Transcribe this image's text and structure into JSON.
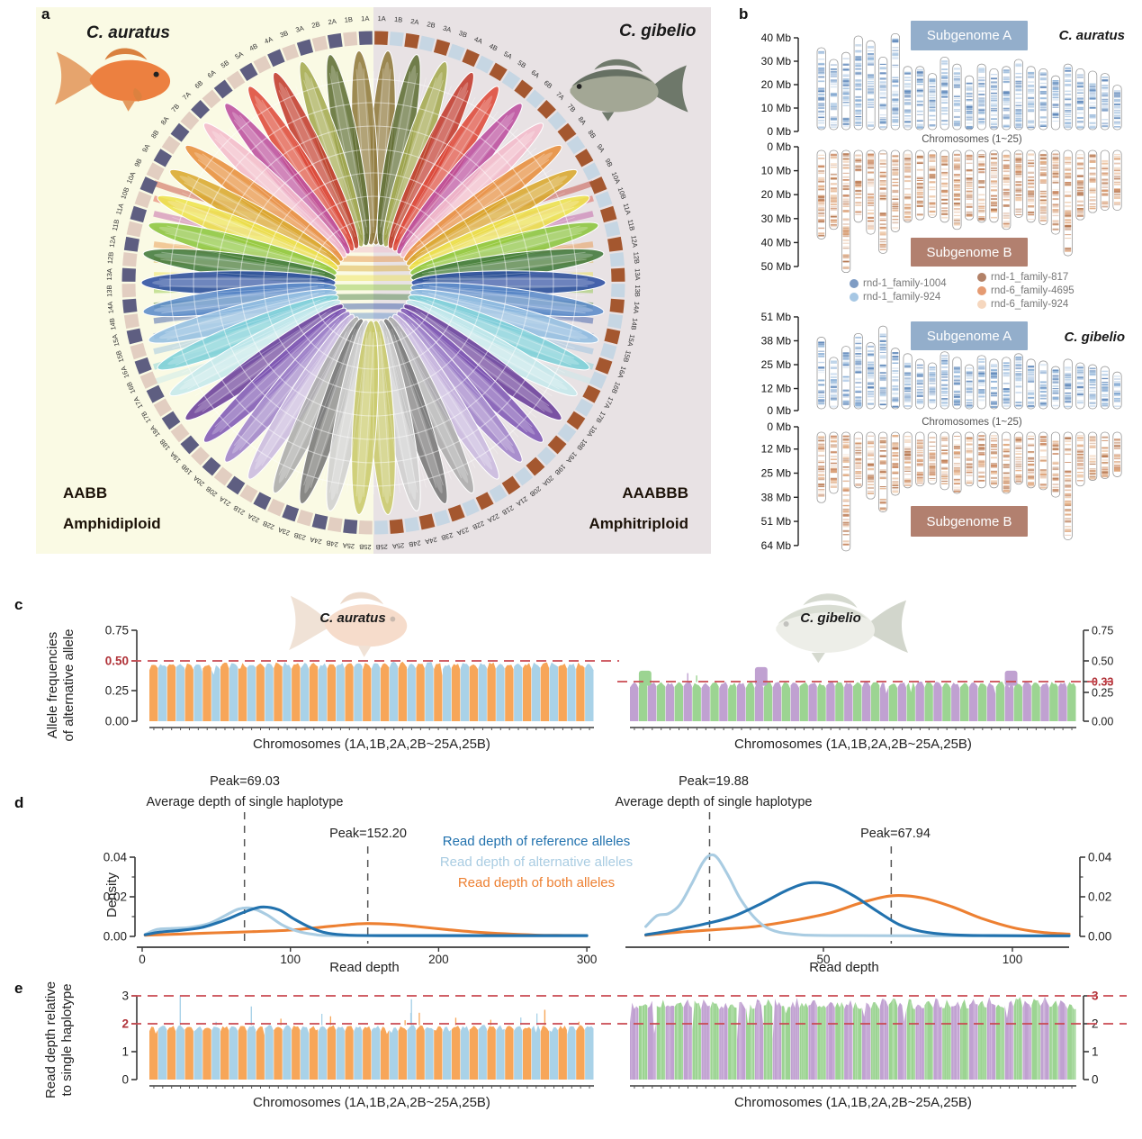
{
  "panels": {
    "a": {
      "letter": "a",
      "species_left": "C. auratus",
      "species_right": "C. gibelio",
      "ploidy_left_line1": "AABB",
      "ploidy_left_line2": "Amphidiploid",
      "ploidy_right_line1": "AAABBB",
      "ploidy_right_line2": "Amphitriploid",
      "chrom_labels": [
        "1A",
        "1B",
        "2A",
        "2B",
        "3A",
        "3B",
        "4A",
        "4B",
        "5A",
        "5B",
        "6A",
        "6B",
        "7A",
        "7B",
        "8A",
        "8B",
        "9A",
        "9B",
        "10A",
        "10B",
        "11A",
        "11B",
        "12A",
        "12B",
        "13A",
        "13B",
        "14A",
        "14B",
        "15A",
        "15B",
        "16A",
        "16B",
        "17A",
        "17B",
        "18A",
        "18B",
        "19A",
        "19B",
        "20A",
        "20B",
        "21A",
        "21B",
        "22A",
        "22B",
        "23A",
        "23B",
        "24A",
        "24B",
        "25A",
        "25B"
      ],
      "ring_left": {
        "a_color": "#5E5E81",
        "b_color": "#E2CEC1"
      },
      "ring_right": {
        "a_color": "#A4572F",
        "b_color": "#C6D6E3"
      },
      "petal_colors": [
        "#8F7A3C",
        "#5E6E34",
        "#A4AA50",
        "#C13A2C",
        "#DE4A3A",
        "#BC4F9E",
        "#F2BBCB",
        "#E78E3C",
        "#D9A92E",
        "#EDE24D",
        "#8CC63F",
        "#41793B",
        "#2C4FA3",
        "#5B8BC9",
        "#93BEE1",
        "#7ED0D8",
        "#C5E8EC",
        "#6A3D9A",
        "#8059B5",
        "#9F83C9",
        "#C9BADF",
        "#ABABAB",
        "#787878",
        "#CFCFCF",
        "#C9C96B"
      ]
    },
    "b": {
      "letter": "b",
      "subgenome_a": "Subgenome A",
      "subgenome_b": "Subgenome B",
      "subgenome_a_color": "#93AECB",
      "subgenome_b_color": "#B2806F",
      "legend": [
        {
          "label": "rnd-1_family-1004",
          "color": "#7E9CC4"
        },
        {
          "label": "rnd-1_family-924",
          "color": "#A6C7E4"
        },
        {
          "label": "rnd-1_family-817",
          "color": "#B28167"
        },
        {
          "label": "rnd-6_family-4695",
          "color": "#E59B72"
        },
        {
          "label": "rnd-6_family-924",
          "color": "#F6D7BE"
        }
      ],
      "band_colors_a": [
        "#5C85B8",
        "#8FB3D8",
        "#B9D0E8"
      ],
      "band_colors_b": [
        "#C98861",
        "#E0A87E",
        "#EFCBAD",
        "#B5764F"
      ],
      "species": [
        {
          "name": "C. auratus",
          "x_label": "Chromosomes (1~25)",
          "sub_a_ticks": [
            "40 Mb",
            "30 Mb",
            "20 Mb",
            "10 Mb",
            "0 Mb"
          ],
          "sub_a_tick_vals": [
            40,
            30,
            20,
            10,
            0
          ],
          "sub_b_ticks": [
            "0 Mb",
            "10 Mb",
            "20 Mb",
            "30 Mb",
            "40 Mb",
            "50 Mb"
          ],
          "sub_b_tick_vals": [
            0,
            10,
            20,
            30,
            40,
            50
          ],
          "sub_a_lengths_mb": [
            35,
            30,
            33,
            40,
            38,
            31,
            41,
            27,
            27,
            24,
            31,
            28,
            23,
            28,
            26,
            27,
            30,
            27,
            26,
            23,
            28,
            26,
            25,
            24,
            19
          ],
          "sub_b_lengths_mb": [
            37,
            33,
            51,
            30,
            35,
            43,
            34,
            30,
            29,
            28,
            30,
            33,
            29,
            30,
            30,
            33,
            28,
            30,
            31,
            35,
            44,
            29,
            26,
            25,
            25
          ]
        },
        {
          "name": "C. gibelio",
          "x_label": "Chromosomes (1~25)",
          "sub_a_ticks": [
            "51 Mb",
            "38 Mb",
            "25 Mb",
            "12 Mb",
            "0 Mb"
          ],
          "sub_a_tick_vals": [
            51,
            38,
            25,
            12,
            0
          ],
          "sub_b_ticks": [
            "0 Mb",
            "12 Mb",
            "25 Mb",
            "38 Mb",
            "51 Mb",
            "64 Mb"
          ],
          "sub_b_tick_vals": [
            0,
            12,
            25,
            38,
            51,
            64
          ],
          "sub_a_lengths_mb": [
            39,
            28,
            34,
            41,
            36,
            45,
            33,
            30,
            27,
            25,
            31,
            28,
            24,
            29,
            27,
            28,
            30,
            27,
            26,
            23,
            27,
            25,
            24,
            23,
            20
          ],
          "sub_b_lengths_mb": [
            38,
            33,
            64,
            30,
            36,
            43,
            34,
            30,
            29,
            28,
            31,
            33,
            29,
            30,
            30,
            33,
            28,
            30,
            31,
            35,
            58,
            29,
            26,
            25,
            24
          ]
        }
      ]
    },
    "c": {
      "letter": "c",
      "y_axis_label_line1": "Allele frequencies",
      "y_axis_label_line2": "of alternative allele",
      "left_species": "C. auratus",
      "right_species": "C. gibelio",
      "left_x_label": "Chromosomes (1A,1B,2A,2B~25A,25B)",
      "right_x_label": "Chromosomes (1A,1B,2A,2B~25A,25B)"
    },
    "d": {
      "letter": "d",
      "y_axis_label": "Density",
      "left_x_label": "Read depth",
      "right_x_label": "Read depth",
      "left_peak1": "Peak=69.03",
      "left_note": "Average depth of single haplotype",
      "left_peak2": "Peak=152.20",
      "right_peak1": "Peak=19.88",
      "right_note": "Average depth of single haplotype",
      "right_peak2": "Peak=67.94",
      "legend": [
        {
          "label": "Read depth of reference alleles",
          "color": "#2272AE"
        },
        {
          "label": "Read depth of alternative alleles",
          "color": "#A9CCE2"
        },
        {
          "label": "Read depth of both alleles",
          "color": "#ED8032"
        }
      ]
    },
    "e": {
      "letter": "e",
      "y_axis_label_line1": "Read depth relative",
      "y_axis_label_line2": "to single haplotype",
      "left_x_label": "Chromosomes (1A,1B,2A,2B~25A,25B)",
      "right_x_label": "Chromosomes (1A,1B,2A,2B~25A,25B)"
    }
  },
  "chart_data": [
    {
      "id": "c_left",
      "type": "bar",
      "species": "C. auratus",
      "ylabel": "Allele frequencies of alternative allele",
      "xlabel": "Chromosomes (1A,1B,2A,2B~25A,25B)",
      "yticks": [
        "0.75",
        "0.50",
        "0.25",
        "0.00"
      ],
      "ytick_values": [
        0.75,
        0.5,
        0.25,
        0.0
      ],
      "highlight_tick": "0.50",
      "reference_line": 0.5,
      "groups": 50,
      "typical_level": 0.49,
      "bar_colors": [
        "#F7A659",
        "#A9D2E8"
      ],
      "description": "50 alternating A/B chromosome groups, allele frequency of alternative allele ~0.50 each"
    },
    {
      "id": "c_right",
      "type": "bar",
      "species": "C. gibelio",
      "ylabel": "Allele frequencies of alternative allele",
      "xlabel": "Chromosomes (1A,1B,2A,2B~25A,25B)",
      "yticks": [
        "0.75",
        "0.50",
        "0.33",
        "0.25",
        "0.00"
      ],
      "ytick_values": [
        0.75,
        0.5,
        0.33,
        0.25,
        0.0
      ],
      "highlight_tick": "0.33",
      "reference_line": 0.33,
      "groups": 50,
      "typical_level": 0.325,
      "bar_colors": [
        "#C0A1D1",
        "#9CD492"
      ],
      "bumps": [
        [
          1,
          0.42
        ],
        [
          14,
          0.45
        ],
        [
          42,
          0.42
        ]
      ],
      "spikes": [
        [
          6,
          0.4
        ],
        [
          7,
          0.38
        ]
      ],
      "description": "50 alternating A/B chromosome groups, allele frequency ~0.33 with a few elevated regions"
    },
    {
      "id": "d_left",
      "type": "line",
      "species": "C. auratus",
      "xlabel": "Read depth",
      "ylabel": "Density",
      "x_range": [
        0,
        300
      ],
      "xticks": [
        0,
        100,
        200,
        300
      ],
      "yticks": [
        0.0,
        0.02,
        0.04
      ],
      "ytick_labels": [
        "0.00",
        "0.02",
        "0.04"
      ],
      "peak_lines": [
        69.03,
        152.2
      ],
      "series": [
        {
          "name": "Read depth of reference alleles",
          "color": "#2272AE",
          "points": [
            [
              2,
              0.0008
            ],
            [
              12,
              0.0022
            ],
            [
              25,
              0.003
            ],
            [
              40,
              0.0045
            ],
            [
              55,
              0.008
            ],
            [
              68,
              0.012
            ],
            [
              80,
              0.0148
            ],
            [
              92,
              0.0135
            ],
            [
              102,
              0.009
            ],
            [
              112,
              0.005
            ],
            [
              122,
              0.0022
            ],
            [
              135,
              0.0008
            ],
            [
              160,
              0.0004
            ],
            [
              220,
              0.0004
            ],
            [
              300,
              0.0004
            ]
          ]
        },
        {
          "name": "Read depth of alternative alleles",
          "color": "#A9CCE2",
          "points": [
            [
              2,
              0.001
            ],
            [
              10,
              0.0035
            ],
            [
              20,
              0.004
            ],
            [
              32,
              0.0045
            ],
            [
              45,
              0.0065
            ],
            [
              56,
              0.0105
            ],
            [
              65,
              0.0138
            ],
            [
              74,
              0.0142
            ],
            [
              84,
              0.011
            ],
            [
              94,
              0.006
            ],
            [
              104,
              0.0028
            ],
            [
              116,
              0.001
            ],
            [
              130,
              0.0004
            ],
            [
              200,
              0.0002
            ],
            [
              300,
              0.0002
            ]
          ]
        },
        {
          "name": "Read depth of both alleles",
          "color": "#ED8032",
          "points": [
            [
              2,
              0.0006
            ],
            [
              25,
              0.0012
            ],
            [
              50,
              0.0018
            ],
            [
              75,
              0.0024
            ],
            [
              100,
              0.0032
            ],
            [
              120,
              0.0046
            ],
            [
              140,
              0.006
            ],
            [
              152,
              0.0065
            ],
            [
              168,
              0.0061
            ],
            [
              185,
              0.005
            ],
            [
              205,
              0.0035
            ],
            [
              225,
              0.0022
            ],
            [
              245,
              0.0013
            ],
            [
              265,
              0.0007
            ],
            [
              285,
              0.0005
            ],
            [
              300,
              0.0004
            ]
          ]
        }
      ]
    },
    {
      "id": "d_right",
      "type": "line",
      "species": "C. gibelio",
      "xlabel": "Read depth",
      "ylabel": "Density",
      "x_range": [
        0,
        115
      ],
      "xticks": [
        50,
        100
      ],
      "yticks": [
        0.0,
        0.02,
        0.04
      ],
      "ytick_labels": [
        "0.00",
        "0.02",
        "0.04"
      ],
      "peak_lines": [
        19.88,
        67.94
      ],
      "series": [
        {
          "name": "Read depth of reference alleles",
          "color": "#2272AE",
          "points": [
            [
              3,
              0.0008
            ],
            [
              10,
              0.003
            ],
            [
              18,
              0.006
            ],
            [
              26,
              0.01
            ],
            [
              34,
              0.017
            ],
            [
              40,
              0.023
            ],
            [
              46,
              0.027
            ],
            [
              52,
              0.026
            ],
            [
              58,
              0.0205
            ],
            [
              64,
              0.013
            ],
            [
              70,
              0.006
            ],
            [
              76,
              0.0025
            ],
            [
              84,
              0.0008
            ],
            [
              95,
              0.0004
            ],
            [
              115,
              0.0003
            ]
          ]
        },
        {
          "name": "Read depth of alternative alleles",
          "color": "#A9CCE2",
          "points": [
            [
              3,
              0.005
            ],
            [
              6,
              0.0105
            ],
            [
              9,
              0.0115
            ],
            [
              12,
              0.016
            ],
            [
              15,
              0.026
            ],
            [
              18,
              0.037
            ],
            [
              20,
              0.041
            ],
            [
              22,
              0.0395
            ],
            [
              25,
              0.03
            ],
            [
              28,
              0.019
            ],
            [
              32,
              0.009
            ],
            [
              36,
              0.0035
            ],
            [
              42,
              0.0012
            ],
            [
              55,
              0.0004
            ],
            [
              115,
              0.0002
            ]
          ]
        },
        {
          "name": "Read depth of both alleles",
          "color": "#ED8032",
          "points": [
            [
              3,
              0.0006
            ],
            [
              12,
              0.0022
            ],
            [
              22,
              0.0035
            ],
            [
              32,
              0.005
            ],
            [
              42,
              0.008
            ],
            [
              52,
              0.012
            ],
            [
              60,
              0.017
            ],
            [
              68,
              0.0205
            ],
            [
              76,
              0.0195
            ],
            [
              84,
              0.015
            ],
            [
              92,
              0.009
            ],
            [
              100,
              0.0045
            ],
            [
              108,
              0.002
            ],
            [
              115,
              0.0012
            ]
          ]
        }
      ]
    },
    {
      "id": "e_left",
      "type": "bar",
      "species": "C. auratus",
      "ylabel": "Read depth relative to single haplotype",
      "xlabel": "Chromosomes (1A,1B,2A,2B~25A,25B)",
      "yticks": [
        "3",
        "2",
        "1",
        "0"
      ],
      "ytick_values": [
        3,
        2,
        1,
        0
      ],
      "highlight_tick": "2",
      "reference_lines": [
        3,
        2
      ],
      "groups": 50,
      "typical_level": 1.95,
      "bar_colors": [
        "#F7A659",
        "#A9D2E8"
      ],
      "spikes": [
        [
          3,
          3.02
        ],
        [
          11,
          2.62
        ],
        [
          29,
          2.88
        ],
        [
          44,
          2.5
        ]
      ],
      "description": "read depth ~2x single haplotype across all 50 chromosomes"
    },
    {
      "id": "e_right",
      "type": "bar",
      "species": "C. gibelio",
      "ylabel": "Read depth relative to single haplotype",
      "xlabel": "Chromosomes (1A,1B,2A,2B~25A,25B)",
      "yticks": [
        "3",
        "2",
        "1",
        "0"
      ],
      "ytick_values": [
        3,
        2,
        1,
        0
      ],
      "highlight_tick": "3",
      "reference_lines": [
        3,
        2
      ],
      "groups": 50,
      "typical_level": 2.93,
      "bar_colors": [
        "#C0A1D1",
        "#9CD492"
      ],
      "description": "read depth ~3x single haplotype across all 50 chromosomes, ragged profile"
    }
  ],
  "style": {
    "red_dash_color": "#C94A52",
    "red_text_color": "#B03238",
    "panel_a_left_bg": "#FAFAE4",
    "panel_a_right_bg": "#E8E2E4"
  }
}
